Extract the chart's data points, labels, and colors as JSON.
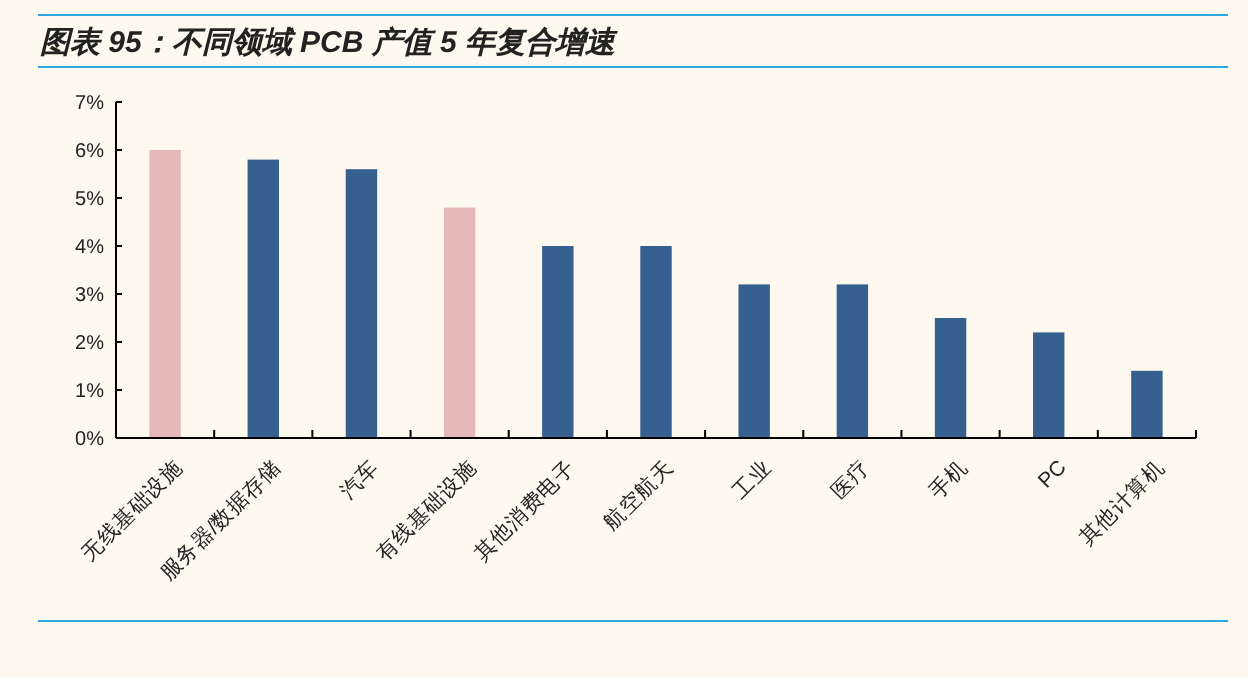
{
  "chart_data": {
    "type": "bar",
    "title": "图表 95：不同领域 PCB 产值 5 年复合增速",
    "categories": [
      "无线基础设施",
      "服务器/数据存储",
      "汽车",
      "有线基础设施",
      "其他消费电子",
      "航空航天",
      "工业",
      "医疗",
      "手机",
      "PC",
      "其他计算机"
    ],
    "values": [
      6.0,
      5.8,
      5.6,
      4.8,
      4.0,
      4.0,
      3.2,
      3.2,
      2.5,
      2.2,
      1.4
    ],
    "colors": [
      "#e6b8b7",
      "#36608f",
      "#36608f",
      "#e6b8b7",
      "#36608f",
      "#36608f",
      "#36608f",
      "#36608f",
      "#36608f",
      "#36608f",
      "#36608f"
    ],
    "ylim": [
      0,
      7
    ],
    "yticks": [
      {
        "value": 0,
        "label": "0%"
      },
      {
        "value": 1,
        "label": "1%"
      },
      {
        "value": 2,
        "label": "2%"
      },
      {
        "value": 3,
        "label": "3%"
      },
      {
        "value": 4,
        "label": "4%"
      },
      {
        "value": 5,
        "label": "5%"
      },
      {
        "value": 6,
        "label": "6%"
      },
      {
        "value": 7,
        "label": "7%"
      }
    ],
    "grid": false
  }
}
